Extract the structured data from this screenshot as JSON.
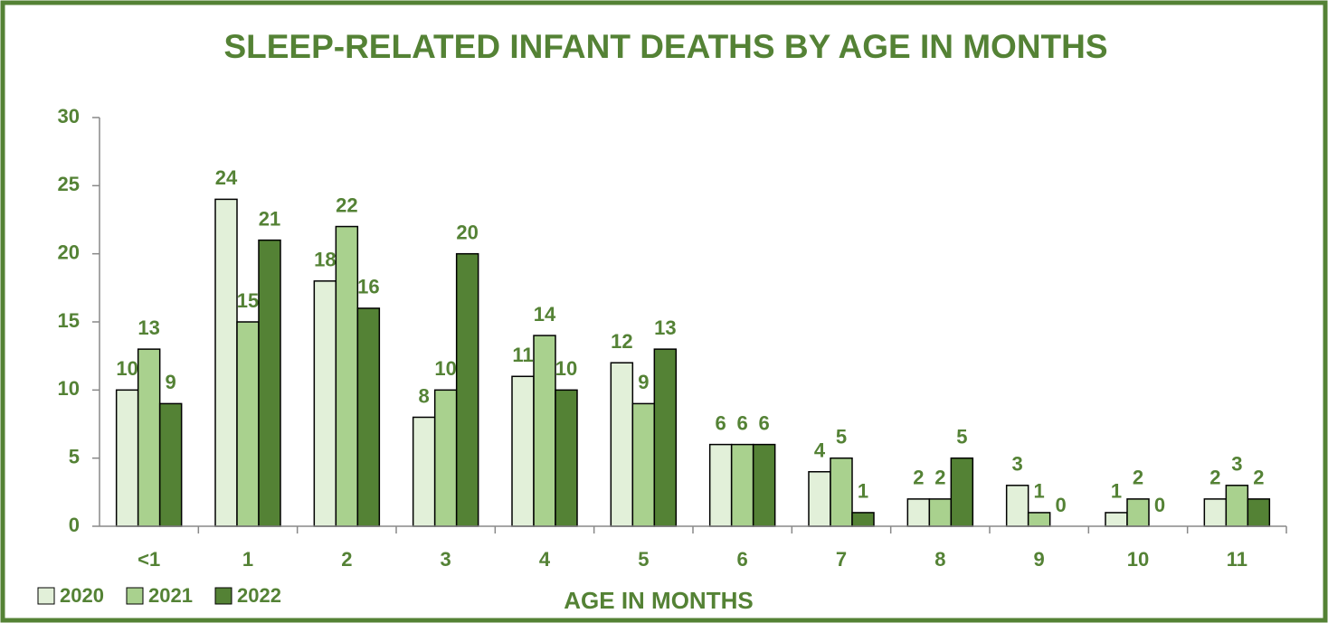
{
  "chart_data": {
    "type": "bar",
    "title": "SLEEP-RELATED INFANT DEATHS BY AGE IN MONTHS",
    "x_label": "AGE IN MONTHS",
    "categories": [
      "<1",
      "1",
      "2",
      "3",
      "4",
      "5",
      "6",
      "7",
      "8",
      "9",
      "10",
      "11"
    ],
    "series": [
      {
        "name": "2020",
        "color": "#e2f0d9",
        "values": [
          10,
          24,
          18,
          8,
          11,
          12,
          6,
          4,
          2,
          3,
          1,
          2
        ]
      },
      {
        "name": "2021",
        "color": "#a9d18e",
        "values": [
          13,
          15,
          22,
          10,
          14,
          9,
          6,
          5,
          2,
          1,
          2,
          3
        ]
      },
      {
        "name": "2022",
        "color": "#548235",
        "values": [
          9,
          21,
          16,
          20,
          10,
          13,
          6,
          1,
          5,
          0,
          0,
          2
        ]
      }
    ],
    "ylim": [
      0,
      30
    ],
    "yticks": [
      0,
      5,
      10,
      15,
      20,
      25,
      30
    ],
    "legend": "bottom-left"
  }
}
